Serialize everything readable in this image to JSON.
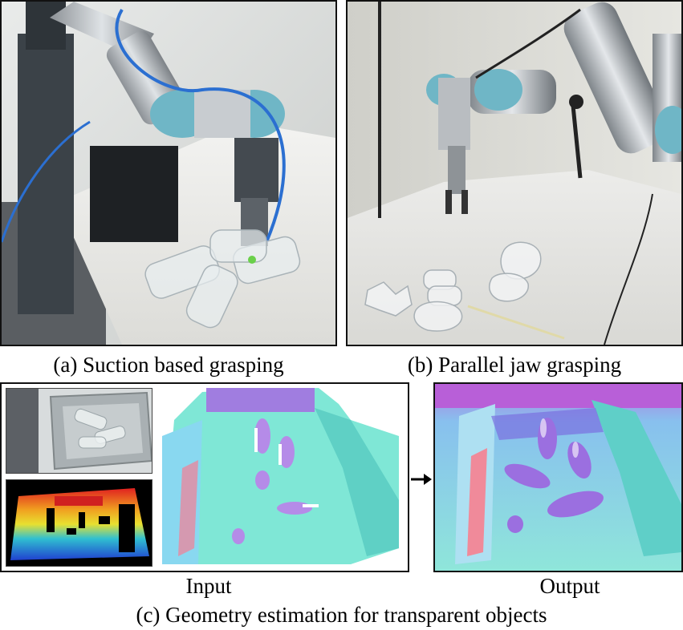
{
  "captions": {
    "a": "(a) Suction based grasping",
    "b": "(b) Parallel jaw grasping",
    "c": "(c) Geometry estimation for transparent objects"
  },
  "labels": {
    "input": "Input",
    "output": "Output"
  },
  "colors": {
    "robot_blue": "#6fb6c6",
    "normal_cyan": "#7fe7d6",
    "normal_purple": "#a07de0",
    "normal_pink": "#e88aa0",
    "depth_red": "#e02020",
    "depth_blue": "#2040d0"
  }
}
